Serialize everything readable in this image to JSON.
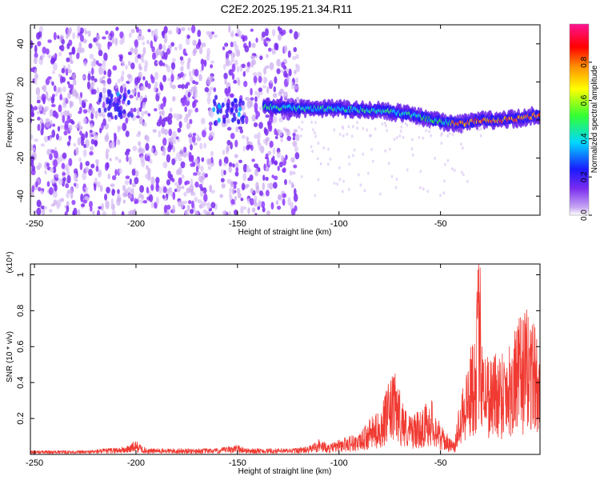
{
  "title": "C2E2.2025.195.21.34.R11",
  "colors": {
    "snr_line": "#f03a32",
    "spectrogram_scatter": "#c9a8f0",
    "spectrogram_dense": "#7a2cf0",
    "ridge_core": "#2ad2ff",
    "ridge_hot": "#ff2a2a"
  },
  "chart_data": [
    {
      "type": "heatmap",
      "id": "spectrogram",
      "xlabel": "Height of straight line (km)",
      "ylabel": "Frequency (Hz)",
      "xlim": [
        -252,
        -1
      ],
      "ylim": [
        -50,
        50
      ],
      "x_ticks": [
        -250,
        -200,
        -150,
        -100,
        -50
      ],
      "y_ticks": [
        -40,
        -20,
        0,
        20,
        40
      ],
      "colorbar": {
        "label": "Normalized spectral amplitude",
        "range": [
          0.0,
          1.0
        ],
        "ticks": [
          0.0,
          0.2,
          0.4,
          0.6,
          0.8
        ],
        "tick_labels": [
          "0.0",
          "0.2",
          "0.4",
          "0.6",
          "0.8"
        ],
        "colormap": [
          "#ffffff",
          "#7a2cf0",
          "#1a1aff",
          "#00d8ff",
          "#33ff33",
          "#ffff00",
          "#ff8c00",
          "#ff0000",
          "#ff1493"
        ]
      },
      "ridge": [
        {
          "x": -137,
          "y": 7
        },
        {
          "x": -120,
          "y": 6
        },
        {
          "x": -100,
          "y": 6
        },
        {
          "x": -80,
          "y": 5
        },
        {
          "x": -65,
          "y": 3
        },
        {
          "x": -50,
          "y": -1
        },
        {
          "x": -40,
          "y": -2
        },
        {
          "x": -30,
          "y": 0
        },
        {
          "x": -20,
          "y": 0
        },
        {
          "x": -10,
          "y": 1
        },
        {
          "x": -1,
          "y": 3
        }
      ],
      "blobs": [
        {
          "x": -210,
          "y": 8,
          "amplitude": 0.35
        },
        {
          "x": -155,
          "y": 5,
          "amplitude": 0.3
        }
      ],
      "scatter_extent": {
        "x": [
          -252,
          -120
        ],
        "y": [
          -50,
          48
        ]
      }
    },
    {
      "type": "line",
      "id": "snr",
      "xlabel": "Height of straight line (km)",
      "ylabel": "SNR (10 * v/v)",
      "multiplier_label": "(x10⁴)",
      "xlim": [
        -252,
        -1
      ],
      "ylim": [
        0,
        1.06
      ],
      "x_ticks": [
        -250,
        -200,
        -150,
        -100,
        -50
      ],
      "y_ticks": [
        0.2,
        0.4,
        0.6,
        0.8,
        1.0
      ],
      "series": [
        {
          "x": [
            -252,
            -225,
            -205,
            -200,
            -195,
            -170,
            -160,
            -150,
            -145,
            -125,
            -115,
            -110,
            -105,
            -95,
            -90,
            -85,
            -80,
            -75,
            -72,
            -70,
            -66,
            -60,
            -55,
            -50,
            -45,
            -43,
            -40,
            -38,
            -35,
            -33,
            -31,
            -28,
            -25,
            -20,
            -15,
            -10,
            -5,
            -3,
            -1
          ],
          "y": [
            0.02,
            0.02,
            0.04,
            0.07,
            0.03,
            0.03,
            0.03,
            0.05,
            0.03,
            0.03,
            0.04,
            0.08,
            0.05,
            0.1,
            0.1,
            0.18,
            0.22,
            0.38,
            0.42,
            0.33,
            0.2,
            0.22,
            0.3,
            0.15,
            0.08,
            0.06,
            0.38,
            0.42,
            0.55,
            0.7,
            1.06,
            0.55,
            0.52,
            0.55,
            0.6,
            0.72,
            0.76,
            0.62,
            0.48
          ]
        }
      ]
    }
  ]
}
